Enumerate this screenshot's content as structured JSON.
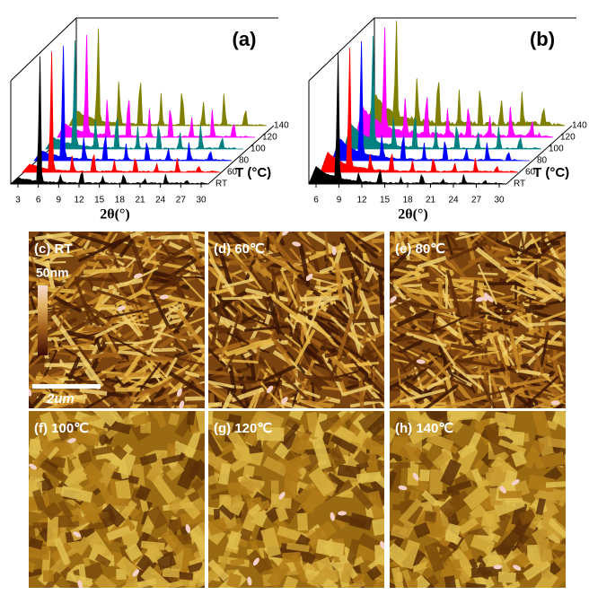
{
  "panels": [
    {
      "label": "(a)",
      "x_ticks": [
        "3",
        "6",
        "9",
        "12",
        "15",
        "18",
        "21",
        "24",
        "27",
        "30"
      ],
      "series_labels": [
        "RT",
        "60",
        "80",
        "100",
        "120",
        "140"
      ],
      "z_axis_label": "T (°C)",
      "x_axis_label": "2θ(°)"
    },
    {
      "label": "(b)",
      "x_ticks": [
        "6",
        "9",
        "12",
        "15",
        "18",
        "21",
        "24",
        "27",
        "30"
      ],
      "series_labels": [
        "RT",
        "60",
        "80",
        "100",
        "120",
        "140"
      ],
      "z_axis_label": "T (°C)",
      "x_axis_label": "2θ(°)"
    }
  ],
  "afm": [
    {
      "label": "(c) RT"
    },
    {
      "label": "(d) 60℃"
    },
    {
      "label": "(e) 80℃"
    },
    {
      "label": "(f) 100℃"
    },
    {
      "label": "(g) 120℃"
    },
    {
      "label": "(h) 140℃"
    }
  ],
  "colorbar": {
    "max_label": "50nm"
  },
  "scale_bar": {
    "label": "2um"
  }
}
